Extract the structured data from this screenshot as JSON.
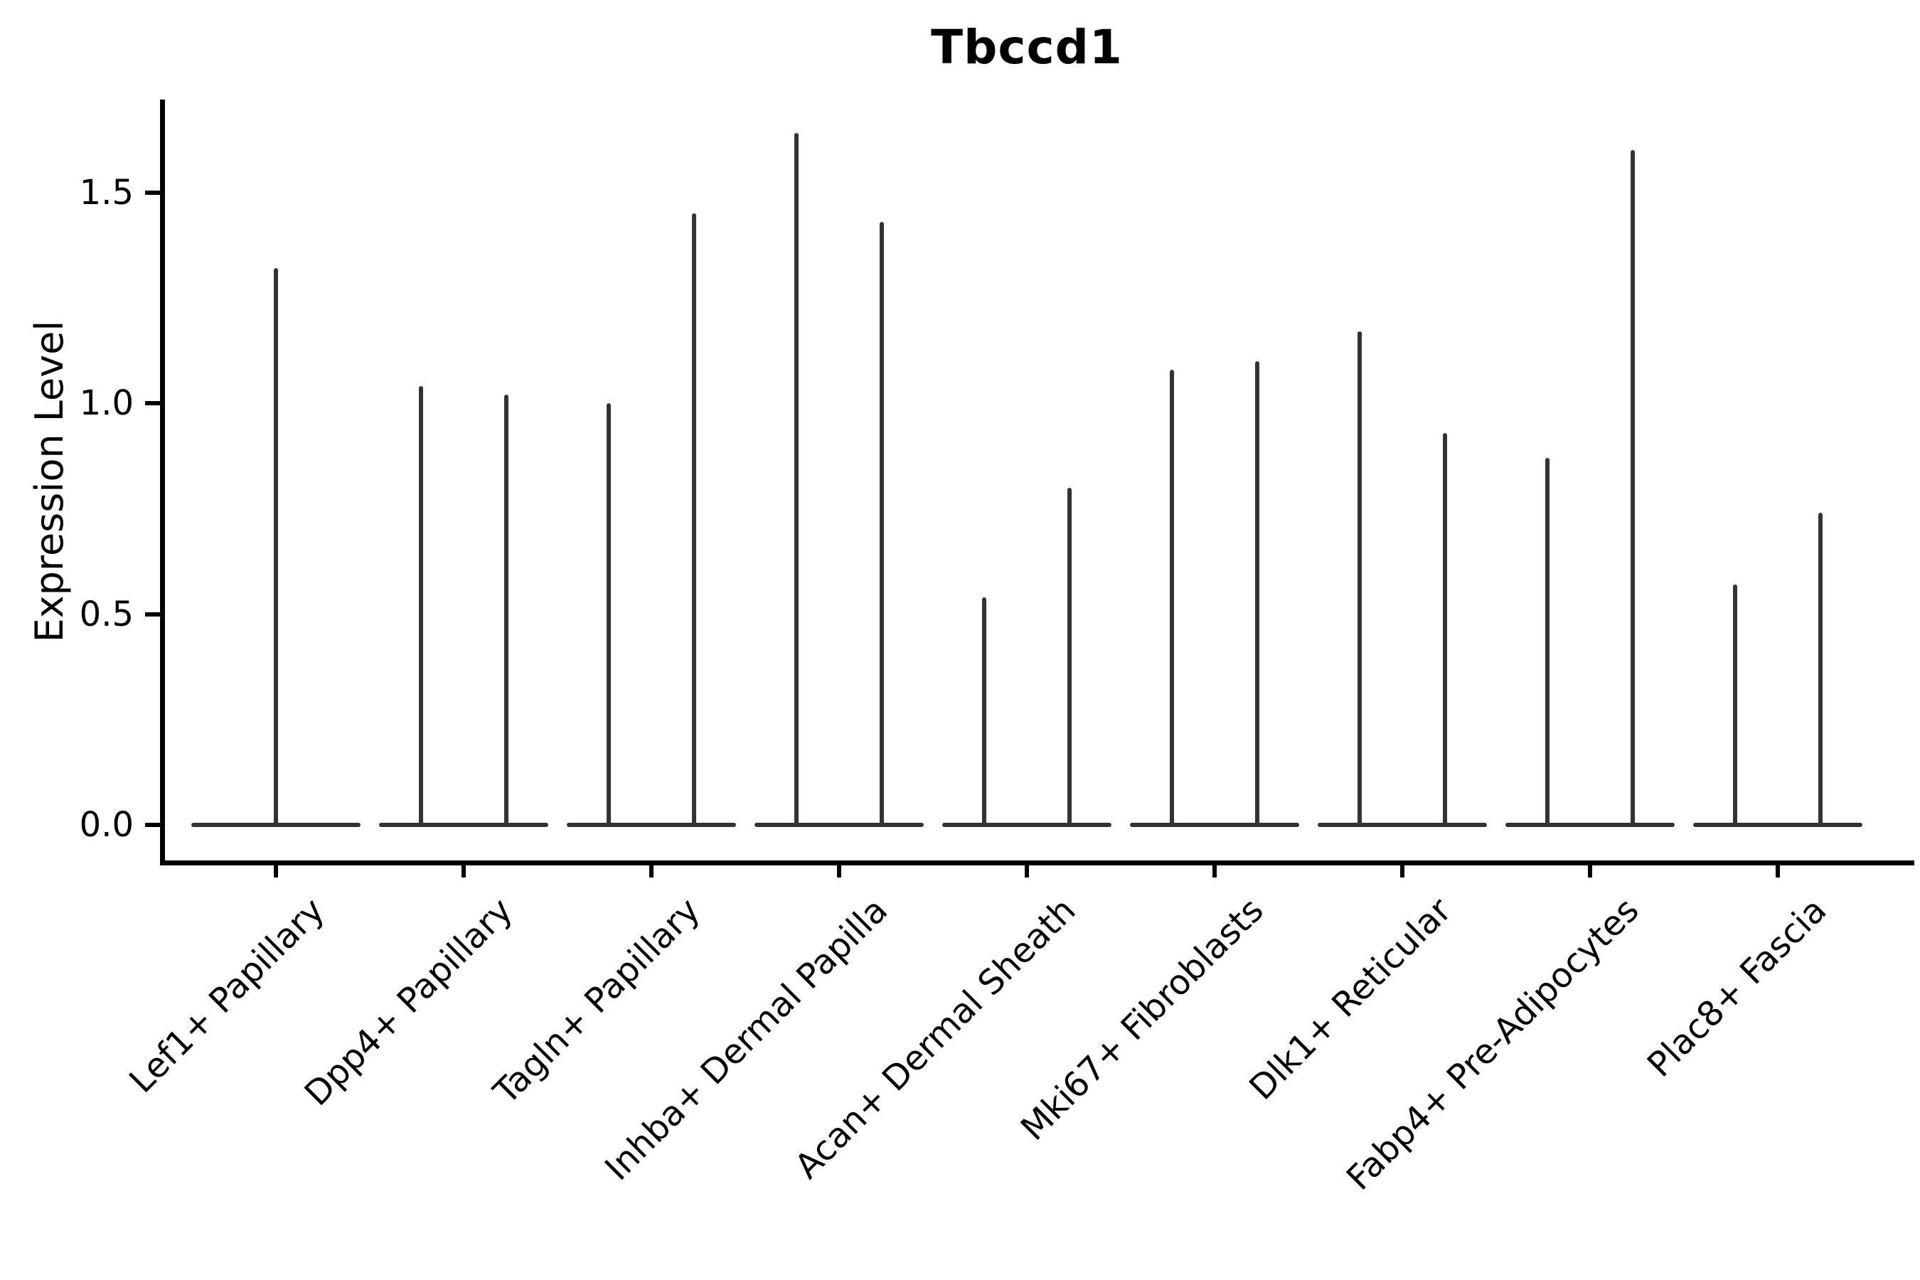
{
  "chart_data": {
    "type": "violin",
    "title": "Tbccd1",
    "xlabel": "",
    "ylabel": "Expression Level",
    "yticks": [
      "0.0",
      "0.5",
      "1.0",
      "1.5"
    ],
    "ytick_values": [
      0.0,
      0.5,
      1.0,
      1.5
    ],
    "ylim": [
      -0.08,
      1.72
    ],
    "grid": false,
    "legend": "none",
    "colors": {
      "violin": "#333333",
      "axis": "#000000",
      "text": "#000000",
      "background": "#ffffff"
    },
    "categories": [
      "Lef1+ Papillary",
      "Dpp4+ Papillary",
      "Tagln+ Papillary",
      "Inhba+ Dermal Papilla",
      "Acan+ Dermal Sheath",
      "Mki67+ Fibroblasts",
      "Dlk1+ Reticular",
      "Fabp4+ Pre-Adipocytes",
      "Plac8+ Fascia"
    ],
    "violins": [
      {
        "category": "Lef1+ Papillary",
        "spikes": [
          {
            "slot": 0,
            "max": 1.32
          }
        ]
      },
      {
        "category": "Dpp4+ Papillary",
        "spikes": [
          {
            "slot": -1,
            "max": 1.04
          },
          {
            "slot": 1,
            "max": 1.02
          }
        ]
      },
      {
        "category": "Tagln+ Papillary",
        "spikes": [
          {
            "slot": -1,
            "max": 1.0
          },
          {
            "slot": 1,
            "max": 1.45
          }
        ]
      },
      {
        "category": "Inhba+ Dermal Papilla",
        "spikes": [
          {
            "slot": -1,
            "max": 1.64
          },
          {
            "slot": 1,
            "max": 1.43
          }
        ]
      },
      {
        "category": "Acan+ Dermal Sheath",
        "spikes": [
          {
            "slot": -1,
            "max": 0.54
          },
          {
            "slot": 1,
            "max": 0.8
          }
        ]
      },
      {
        "category": "Mki67+ Fibroblasts",
        "spikes": [
          {
            "slot": -1,
            "max": 1.08
          },
          {
            "slot": 1,
            "max": 1.1
          }
        ]
      },
      {
        "category": "Dlk1+ Reticular",
        "spikes": [
          {
            "slot": -1,
            "max": 1.17
          },
          {
            "slot": 1,
            "max": 0.93
          }
        ]
      },
      {
        "category": "Fabp4+ Pre-Adipocytes",
        "spikes": [
          {
            "slot": -1,
            "max": 0.87
          },
          {
            "slot": 1,
            "max": 1.6
          }
        ]
      },
      {
        "category": "Plac8+ Fascia",
        "spikes": [
          {
            "slot": -1,
            "max": 0.57
          },
          {
            "slot": 1,
            "max": 0.74
          }
        ]
      }
    ],
    "baseline_value": 0.0
  }
}
